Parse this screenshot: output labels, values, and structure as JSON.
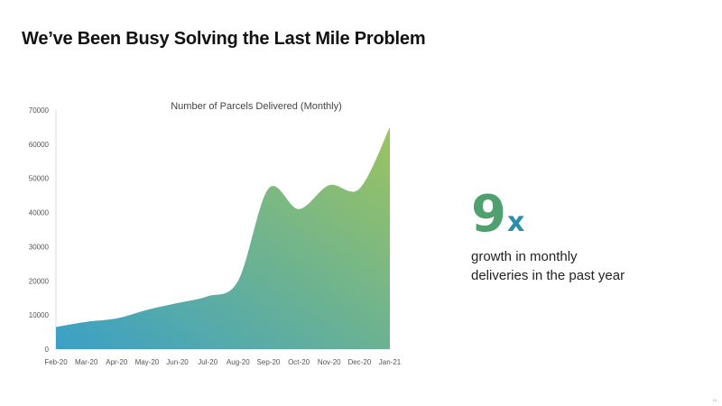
{
  "slide": {
    "title": "We’ve Been Busy Solving the Last Mile Problem",
    "page_number": "10"
  },
  "chart_data": {
    "type": "area",
    "title": "Number of Parcels Delivered (Monthly)",
    "categories": [
      "Feb-20",
      "Mar-20",
      "Apr-20",
      "May-20",
      "Jun-20",
      "Jul-20",
      "Aug-20",
      "Sep-20",
      "Oct-20",
      "Nov-20",
      "Dec-20",
      "Jan-21"
    ],
    "values": [
      6500,
      8000,
      9000,
      11500,
      13500,
      15500,
      20000,
      47000,
      41000,
      48000,
      47000,
      65000
    ],
    "xlabel": "",
    "ylabel": "",
    "ylim": [
      0,
      70000
    ],
    "yticks": [
      0,
      10000,
      20000,
      30000,
      40000,
      50000,
      60000,
      70000
    ],
    "grid": false,
    "legend": "none",
    "fill_gradient": [
      "#3aa0c7",
      "#9cc45f"
    ]
  },
  "callout": {
    "number": "9",
    "suffix": "x",
    "text_line1": "growth in monthly",
    "text_line2": "deliveries in the past year"
  }
}
